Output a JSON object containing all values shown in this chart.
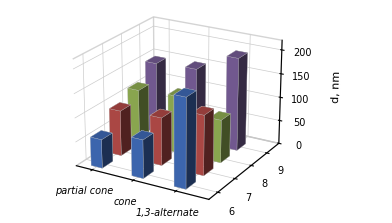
{
  "conformations": [
    "partial cone",
    "cone",
    "1,3-alternate"
  ],
  "depth_labels": [
    "6",
    "7",
    "8",
    "9"
  ],
  "bar_data": [
    [
      60,
      95,
      115,
      150
    ],
    [
      80,
      100,
      120,
      155
    ],
    [
      185,
      125,
      90,
      195
    ]
  ],
  "colors": [
    "#4472C4",
    "#C0504D",
    "#9BBB59",
    "#8064A2"
  ],
  "zlabel": "d, nm",
  "zlim": [
    0,
    220
  ],
  "zticks": [
    0,
    50,
    100,
    150,
    200
  ],
  "background_color": "#ffffff",
  "bar_width": 0.55,
  "bar_depth": 0.55,
  "elev": 22,
  "azim": -60
}
